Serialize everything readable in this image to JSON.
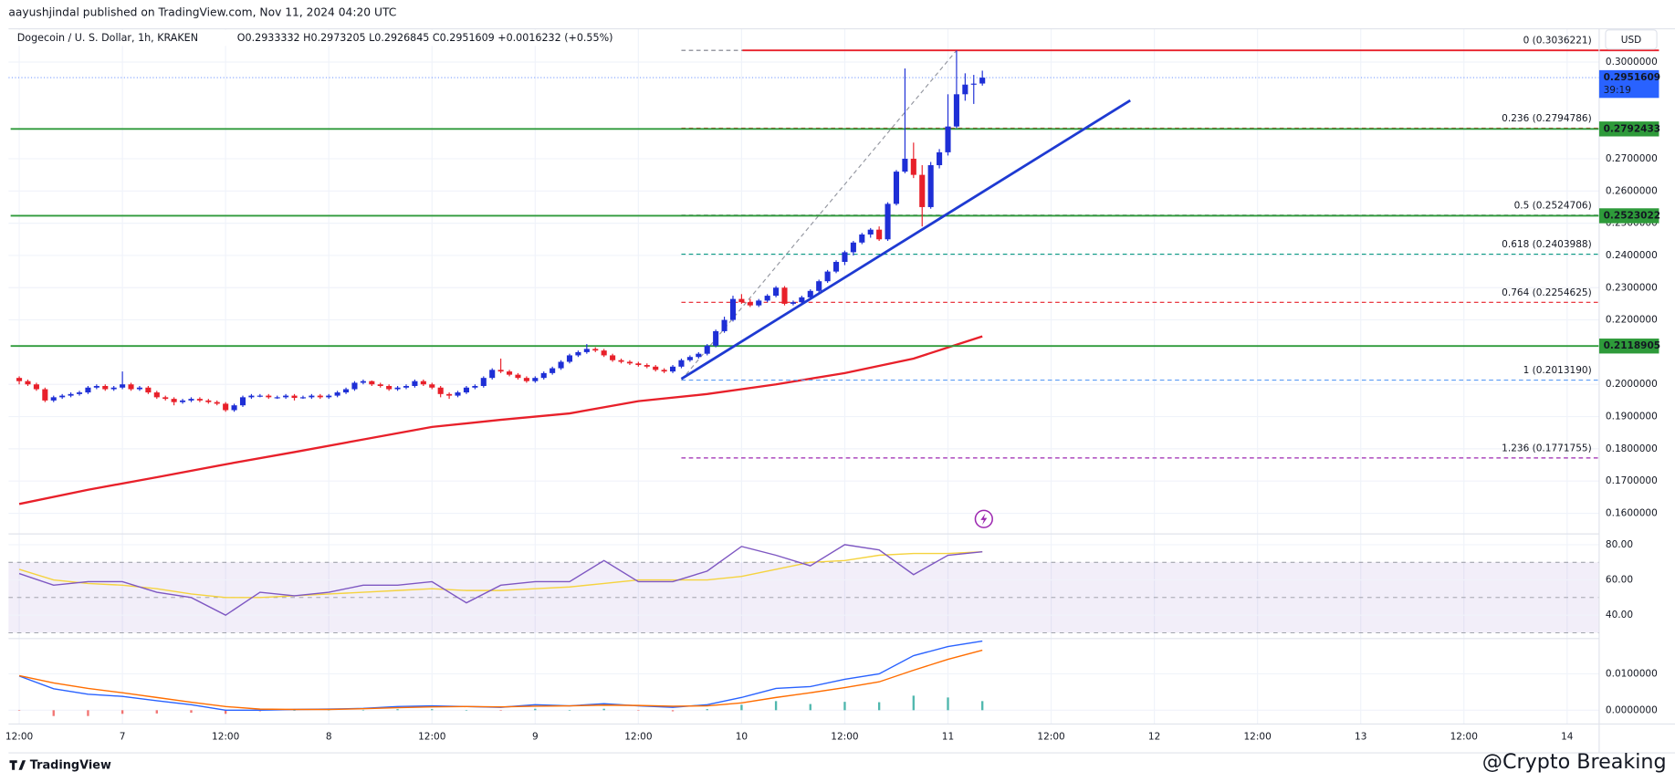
{
  "header": {
    "byline": "aayushjindal published on TradingView.com, Nov 11, 2024 04:20 UTC",
    "title": "Dogecoin / U. S. Dollar, 1h, KRAKEN",
    "ohlc": "O0.2933332 H0.2973205 L0.2926845 C0.2951609 +0.0016232 (+0.55%)"
  },
  "currency": "USD",
  "footer": "TradingView",
  "watermark": "@Crypto Breaking",
  "x_labels": [
    "12:00",
    "7",
    "12:00",
    "8",
    "12:00",
    "9",
    "12:00",
    "10",
    "12:00",
    "11",
    "12:00",
    "12",
    "12:00",
    "13",
    "12:00",
    "14"
  ],
  "chart_data": [
    {
      "type": "candlestick",
      "up_color": "#1e2fd6",
      "down_color": "#e8202a",
      "ylim": [
        0.1536,
        0.3103
      ],
      "yticks": [
        {
          "value": 0.16,
          "label": "0.1600000"
        },
        {
          "value": 0.17,
          "label": "0.1700000"
        },
        {
          "value": 0.18,
          "label": "0.1800000"
        },
        {
          "value": 0.19,
          "label": "0.1900000"
        },
        {
          "value": 0.2,
          "label": "0.2000000"
        },
        {
          "value": 0.22,
          "label": "0.2200000"
        },
        {
          "value": 0.23,
          "label": "0.2300000"
        },
        {
          "value": 0.24,
          "label": "0.2400000"
        },
        {
          "value": 0.25,
          "label": "0.2500000"
        },
        {
          "value": 0.26,
          "label": "0.2600000"
        },
        {
          "value": 0.27,
          "label": "0.2700000"
        },
        {
          "value": 0.3,
          "label": "0.3000000"
        }
      ],
      "ohlc": [
        [
          0.202,
          0.2025,
          0.2,
          0.201
        ],
        [
          0.201,
          0.2015,
          0.1995,
          0.2
        ],
        [
          0.2,
          0.2005,
          0.198,
          0.1985
        ],
        [
          0.1985,
          0.199,
          0.1945,
          0.195
        ],
        [
          0.195,
          0.1965,
          0.1945,
          0.196
        ],
        [
          0.196,
          0.197,
          0.1955,
          0.1965
        ],
        [
          0.1965,
          0.1975,
          0.196,
          0.197
        ],
        [
          0.197,
          0.198,
          0.1965,
          0.1975
        ],
        [
          0.1975,
          0.1995,
          0.197,
          0.199
        ],
        [
          0.199,
          0.2,
          0.1985,
          0.1995
        ],
        [
          0.1995,
          0.2,
          0.198,
          0.1985
        ],
        [
          0.1985,
          0.1995,
          0.198,
          0.199
        ],
        [
          0.199,
          0.204,
          0.1985,
          0.2
        ],
        [
          0.2,
          0.2005,
          0.198,
          0.1985
        ],
        [
          0.1985,
          0.1995,
          0.198,
          0.199
        ],
        [
          0.199,
          0.1995,
          0.197,
          0.1975
        ],
        [
          0.1975,
          0.198,
          0.1955,
          0.196
        ],
        [
          0.196,
          0.1965,
          0.195,
          0.1955
        ],
        [
          0.1955,
          0.196,
          0.1935,
          0.1945
        ],
        [
          0.1945,
          0.1955,
          0.194,
          0.195
        ],
        [
          0.195,
          0.196,
          0.1945,
          0.1955
        ],
        [
          0.1955,
          0.196,
          0.1945,
          0.195
        ],
        [
          0.195,
          0.1955,
          0.194,
          0.1945
        ],
        [
          0.1945,
          0.195,
          0.1935,
          0.194
        ],
        [
          0.194,
          0.1945,
          0.1915,
          0.192
        ],
        [
          0.192,
          0.194,
          0.1915,
          0.1935
        ],
        [
          0.1935,
          0.1965,
          0.193,
          0.196
        ],
        [
          0.196,
          0.197,
          0.1955,
          0.1965
        ],
        [
          0.1965,
          0.197,
          0.196,
          0.1965
        ],
        [
          0.1965,
          0.197,
          0.1955,
          0.196
        ],
        [
          0.196,
          0.1965,
          0.1955,
          0.196
        ],
        [
          0.196,
          0.197,
          0.1955,
          0.1965
        ],
        [
          0.1965,
          0.197,
          0.195,
          0.1958
        ],
        [
          0.1958,
          0.1965,
          0.1955,
          0.196
        ],
        [
          0.196,
          0.197,
          0.1955,
          0.1965
        ],
        [
          0.1965,
          0.197,
          0.1955,
          0.196
        ],
        [
          0.196,
          0.197,
          0.1955,
          0.1965
        ],
        [
          0.1965,
          0.198,
          0.196,
          0.1975
        ],
        [
          0.1975,
          0.199,
          0.197,
          0.1985
        ],
        [
          0.1985,
          0.201,
          0.198,
          0.2005
        ],
        [
          0.2005,
          0.2015,
          0.2,
          0.201
        ],
        [
          0.201,
          0.2012,
          0.1995,
          0.2
        ],
        [
          0.2,
          0.2005,
          0.199,
          0.1995
        ],
        [
          0.1995,
          0.2,
          0.198,
          0.1985
        ],
        [
          0.1985,
          0.1995,
          0.198,
          0.199
        ],
        [
          0.199,
          0.2,
          0.1985,
          0.1995
        ],
        [
          0.1995,
          0.2015,
          0.199,
          0.201
        ],
        [
          0.201,
          0.2015,
          0.1995,
          0.2
        ],
        [
          0.2,
          0.2005,
          0.1985,
          0.199
        ],
        [
          0.199,
          0.1995,
          0.196,
          0.197
        ],
        [
          0.197,
          0.1975,
          0.1955,
          0.1965
        ],
        [
          0.1965,
          0.198,
          0.196,
          0.1975
        ],
        [
          0.1975,
          0.1995,
          0.197,
          0.199
        ],
        [
          0.199,
          0.2,
          0.1985,
          0.1995
        ],
        [
          0.1995,
          0.2025,
          0.199,
          0.202
        ],
        [
          0.202,
          0.205,
          0.2015,
          0.2045
        ],
        [
          0.2045,
          0.208,
          0.2035,
          0.204
        ],
        [
          0.204,
          0.2045,
          0.2025,
          0.203
        ],
        [
          0.203,
          0.2035,
          0.2015,
          0.202
        ],
        [
          0.202,
          0.2025,
          0.2005,
          0.201
        ],
        [
          0.201,
          0.2025,
          0.2005,
          0.202
        ],
        [
          0.202,
          0.204,
          0.2015,
          0.2035
        ],
        [
          0.2035,
          0.2055,
          0.203,
          0.205
        ],
        [
          0.205,
          0.2075,
          0.2045,
          0.207
        ],
        [
          0.207,
          0.2095,
          0.2065,
          0.209
        ],
        [
          0.209,
          0.2105,
          0.2085,
          0.21
        ],
        [
          0.21,
          0.2125,
          0.2095,
          0.211
        ],
        [
          0.211,
          0.2115,
          0.21,
          0.2105
        ],
        [
          0.2105,
          0.211,
          0.2085,
          0.209
        ],
        [
          0.209,
          0.2095,
          0.207,
          0.2075
        ],
        [
          0.2075,
          0.208,
          0.2065,
          0.207
        ],
        [
          0.207,
          0.2075,
          0.206,
          0.2065
        ],
        [
          0.2065,
          0.207,
          0.2055,
          0.206
        ],
        [
          0.206,
          0.2065,
          0.205,
          0.2055
        ],
        [
          0.2055,
          0.206,
          0.204,
          0.2045
        ],
        [
          0.2045,
          0.205,
          0.2035,
          0.204
        ],
        [
          0.204,
          0.206,
          0.2035,
          0.2055
        ],
        [
          0.2055,
          0.208,
          0.205,
          0.2075
        ],
        [
          0.2075,
          0.209,
          0.207,
          0.2085
        ],
        [
          0.2085,
          0.21,
          0.208,
          0.2095
        ],
        [
          0.2095,
          0.2125,
          0.209,
          0.212
        ],
        [
          0.212,
          0.217,
          0.2115,
          0.2165
        ],
        [
          0.2165,
          0.221,
          0.216,
          0.22
        ],
        [
          0.22,
          0.2275,
          0.2195,
          0.2265
        ],
        [
          0.2265,
          0.228,
          0.225,
          0.2255
        ],
        [
          0.2255,
          0.2265,
          0.224,
          0.2245
        ],
        [
          0.2245,
          0.2265,
          0.224,
          0.226
        ],
        [
          0.226,
          0.228,
          0.2255,
          0.2275
        ],
        [
          0.2275,
          0.2305,
          0.227,
          0.23
        ],
        [
          0.23,
          0.2305,
          0.2245,
          0.225
        ],
        [
          0.225,
          0.226,
          0.2245,
          0.2255
        ],
        [
          0.2255,
          0.2275,
          0.225,
          0.227
        ],
        [
          0.227,
          0.2295,
          0.2265,
          0.229
        ],
        [
          0.229,
          0.2325,
          0.2285,
          0.232
        ],
        [
          0.232,
          0.2355,
          0.2315,
          0.235
        ],
        [
          0.235,
          0.2385,
          0.2345,
          0.238
        ],
        [
          0.238,
          0.2415,
          0.237,
          0.241
        ],
        [
          0.241,
          0.2445,
          0.24,
          0.244
        ],
        [
          0.244,
          0.247,
          0.2435,
          0.2465
        ],
        [
          0.2465,
          0.2485,
          0.2455,
          0.248
        ],
        [
          0.248,
          0.249,
          0.2445,
          0.245
        ],
        [
          0.245,
          0.2565,
          0.2445,
          0.256
        ],
        [
          0.256,
          0.2665,
          0.2555,
          0.266
        ],
        [
          0.266,
          0.298,
          0.2655,
          0.27
        ],
        [
          0.27,
          0.275,
          0.264,
          0.265
        ],
        [
          0.265,
          0.268,
          0.249,
          0.255
        ],
        [
          0.255,
          0.269,
          0.2545,
          0.268
        ],
        [
          0.268,
          0.273,
          0.267,
          0.272
        ],
        [
          0.272,
          0.29,
          0.271,
          0.28
        ],
        [
          0.28,
          0.3036,
          0.2795,
          0.29
        ],
        [
          0.29,
          0.2965,
          0.288,
          0.293
        ],
        [
          0.293,
          0.296,
          0.287,
          0.2933
        ],
        [
          0.2933332,
          0.2973205,
          0.2926845,
          0.2951609
        ]
      ],
      "last_price": {
        "value": 0.2951609,
        "countdown": "39:19",
        "color": "#2962ff"
      },
      "levels": [
        {
          "value": 0.3036221,
          "color": "#e8202a",
          "start_index": 84.1
        },
        {
          "value": 0.2792433,
          "color": "#2e9a3a",
          "start_index": -1
        },
        {
          "value": 0.2523022,
          "color": "#2e9a3a",
          "start_index": -1
        },
        {
          "value": 0.2118905,
          "color": "#2e9a3a",
          "start_index": -1
        }
      ],
      "fib": {
        "candle_index": [
          77,
          109
        ],
        "levels": [
          {
            "label": "0 (0.3036221)",
            "value": 0.3036221,
            "color": "#787b86"
          },
          {
            "label": "0.236 (0.2794786)",
            "value": 0.2794786,
            "color": "#e8202a"
          },
          {
            "label": "0.5 (0.2524706)",
            "value": 0.2524706,
            "color": "#4c525e"
          },
          {
            "label": "0.618 (0.2403988)",
            "value": 0.2403988,
            "color": "#089981"
          },
          {
            "label": "0.764 (0.2254625)",
            "value": 0.2254625,
            "color": "#e8202a"
          },
          {
            "label": "1 (0.2013190)",
            "value": 0.201319,
            "color": "#5b9cf6"
          },
          {
            "label": "1.236 (0.1771755)",
            "value": 0.1771755,
            "color": "#9c27b0"
          }
        ]
      },
      "trendline": {
        "candle_index": [
          77,
          129.2
        ],
        "values": [
          0.2017,
          0.2881
        ],
        "color": "#1e3ad2"
      },
      "sma": {
        "color": "#e8202a",
        "candle_index": [
          0,
          8,
          16,
          24,
          32,
          40,
          48,
          56,
          64,
          72,
          80,
          88,
          96,
          104,
          112
        ],
        "values": [
          0.1629,
          0.1673,
          0.1712,
          0.1752,
          0.179,
          0.1829,
          0.1868,
          0.189,
          0.191,
          0.1948,
          0.197,
          0.2,
          0.2035,
          0.208,
          0.2149
        ]
      }
    },
    {
      "type": "line",
      "ylim": [
        26.7,
        86.1
      ],
      "yticks": [
        {
          "value": 40,
          "label": "40.00"
        },
        {
          "value": 60,
          "label": "60.00"
        },
        {
          "value": 80,
          "label": "80.00"
        }
      ],
      "band": [
        30,
        70
      ],
      "midline": 50,
      "band_color": "#7e57c2",
      "candle_index": [
        0,
        4,
        8,
        12,
        16,
        20,
        24,
        28,
        32,
        36,
        40,
        44,
        48,
        52,
        56,
        60,
        64,
        68,
        72,
        76,
        80,
        84,
        88,
        92,
        96,
        100,
        104,
        108,
        112
      ],
      "series": [
        {
          "color": "#7e57c2",
          "values": [
            63.6,
            57,
            59,
            59,
            53,
            50,
            40,
            53,
            51,
            53,
            57,
            57,
            59,
            47,
            57,
            59,
            59,
            71,
            59,
            59,
            65,
            79,
            74,
            68,
            80,
            77,
            63,
            74,
            76
          ]
        },
        {
          "color": "#f5d33f",
          "values": [
            66,
            60,
            58,
            57,
            55,
            52,
            50,
            50,
            51,
            52,
            53,
            54,
            55,
            54,
            54,
            55,
            56,
            58,
            60,
            60,
            60,
            62,
            66,
            70,
            71,
            74,
            75,
            75,
            76
          ]
        }
      ]
    },
    {
      "type": "combo",
      "ylim": [
        -0.0038,
        0.0197
      ],
      "yticks": [
        {
          "value": 0,
          "label": "0.0000000"
        },
        {
          "value": 0.01,
          "label": "0.0100000"
        }
      ],
      "candle_index": [
        0,
        4,
        8,
        12,
        16,
        20,
        24,
        28,
        32,
        36,
        40,
        44,
        48,
        52,
        56,
        60,
        64,
        68,
        72,
        76,
        80,
        84,
        88,
        92,
        96,
        100,
        104,
        108,
        112
      ],
      "histogram": {
        "up_color": "#26a69a",
        "down_color": "#ef5350",
        "values": [
          -0.0001,
          -0.0016,
          -0.0016,
          -0.001,
          -0.0009,
          -0.0007,
          -0.001,
          -0.0003,
          0,
          0.0001,
          0.0001,
          0.0003,
          0.0003,
          0,
          -0.0001,
          0.0004,
          0,
          0.0004,
          -0.0001,
          -0.0003,
          0.0003,
          0.0015,
          0.0025,
          0.0017,
          0.0023,
          0.0022,
          0.004,
          0.0035,
          0.0025
        ]
      },
      "series": [
        {
          "color": "#2962ff",
          "values": [
            0.0094,
            0.0059,
            0.0044,
            0.0038,
            0.0026,
            0.0015,
            0,
            0,
            0.0002,
            0.0003,
            0.0005,
            0.001,
            0.0012,
            0.001,
            0.0008,
            0.0015,
            0.0012,
            0.0018,
            0.0012,
            0.0008,
            0.0015,
            0.0035,
            0.006,
            0.0065,
            0.0085,
            0.01,
            0.015,
            0.0175,
            0.019
          ]
        },
        {
          "color": "#ff6d00",
          "values": [
            0.0095,
            0.0075,
            0.006,
            0.0048,
            0.0035,
            0.0022,
            0.001,
            0.0003,
            0.0002,
            0.0002,
            0.0004,
            0.0007,
            0.0009,
            0.001,
            0.0009,
            0.0011,
            0.0012,
            0.0014,
            0.0013,
            0.0011,
            0.0012,
            0.002,
            0.0035,
            0.0048,
            0.0062,
            0.0078,
            0.011,
            0.014,
            0.0165
          ]
        }
      ]
    }
  ]
}
